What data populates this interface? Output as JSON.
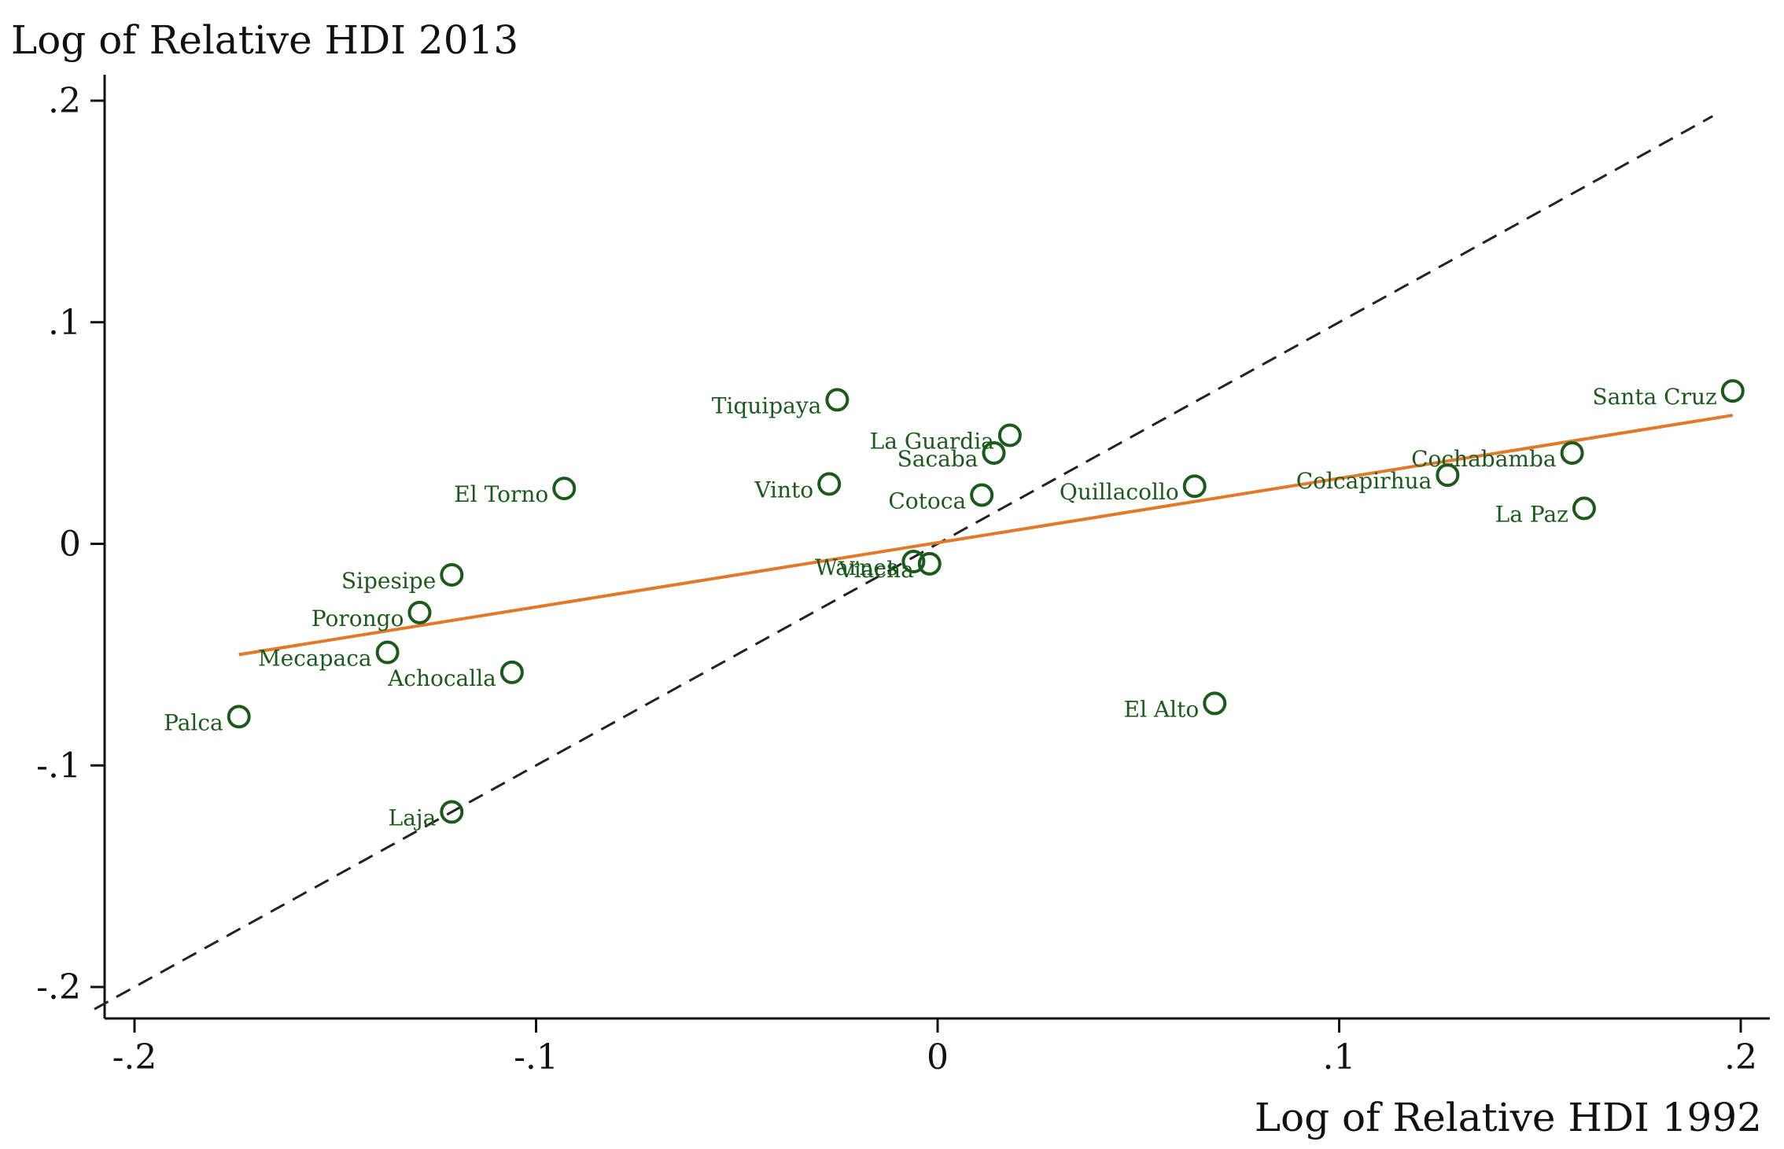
{
  "chart_data": {
    "type": "scatter",
    "title": "",
    "ylabel": "Log of Relative HDI 2013",
    "xlabel": "Log of Relative HDI 1992",
    "xlim": [
      -0.2,
      0.2
    ],
    "ylim": [
      -0.2,
      0.2
    ],
    "x_ticks": [
      -0.2,
      -0.1,
      0,
      0.1,
      0.2
    ],
    "x_tick_labels": [
      "-.2",
      "-.1",
      "0",
      ".1",
      ".2"
    ],
    "y_ticks": [
      -0.2,
      -0.1,
      0,
      0.1,
      0.2
    ],
    "y_tick_labels": [
      "-.2",
      "-.1",
      "0",
      ".1",
      ".2"
    ],
    "grid": false,
    "legend": "none",
    "colors": {
      "points": "#1c5a1c",
      "fit_line": "#e07a2a",
      "reference_line": "#222222"
    },
    "points": [
      {
        "label": "Santa Cruz",
        "x": 0.198,
        "y": 0.069
      },
      {
        "label": "Cochabamba",
        "x": 0.158,
        "y": 0.041
      },
      {
        "label": "Colcapirhua",
        "x": 0.127,
        "y": 0.031
      },
      {
        "label": "La Paz",
        "x": 0.161,
        "y": 0.016
      },
      {
        "label": "Tiquipaya",
        "x": -0.025,
        "y": 0.065
      },
      {
        "label": "La Guardia",
        "x": 0.018,
        "y": 0.049
      },
      {
        "label": "Sacaba",
        "x": 0.014,
        "y": 0.041
      },
      {
        "label": "Vinto",
        "x": -0.027,
        "y": 0.027
      },
      {
        "label": "Cotoca",
        "x": 0.011,
        "y": 0.022
      },
      {
        "label": "Quillacollo",
        "x": 0.064,
        "y": 0.026
      },
      {
        "label": "El Torno",
        "x": -0.093,
        "y": 0.025
      },
      {
        "label": "Warnes",
        "x": -0.006,
        "y": -0.008
      },
      {
        "label": "Viacha",
        "x": -0.002,
        "y": -0.009
      },
      {
        "label": "Sipesipe",
        "x": -0.121,
        "y": -0.014
      },
      {
        "label": "Porongo",
        "x": -0.129,
        "y": -0.031
      },
      {
        "label": "Mecapaca",
        "x": -0.137,
        "y": -0.049
      },
      {
        "label": "Achocalla",
        "x": -0.106,
        "y": -0.058
      },
      {
        "label": "Palca",
        "x": -0.174,
        "y": -0.078
      },
      {
        "label": "El Alto",
        "x": 0.069,
        "y": -0.072
      },
      {
        "label": "Laja",
        "x": -0.121,
        "y": -0.121
      }
    ],
    "fit_line": {
      "x": [
        -0.174,
        0.198
      ],
      "y": [
        -0.05,
        0.058
      ]
    },
    "reference_line": {
      "x": [
        -0.21,
        0.193
      ],
      "y": [
        -0.21,
        0.193
      ]
    }
  }
}
